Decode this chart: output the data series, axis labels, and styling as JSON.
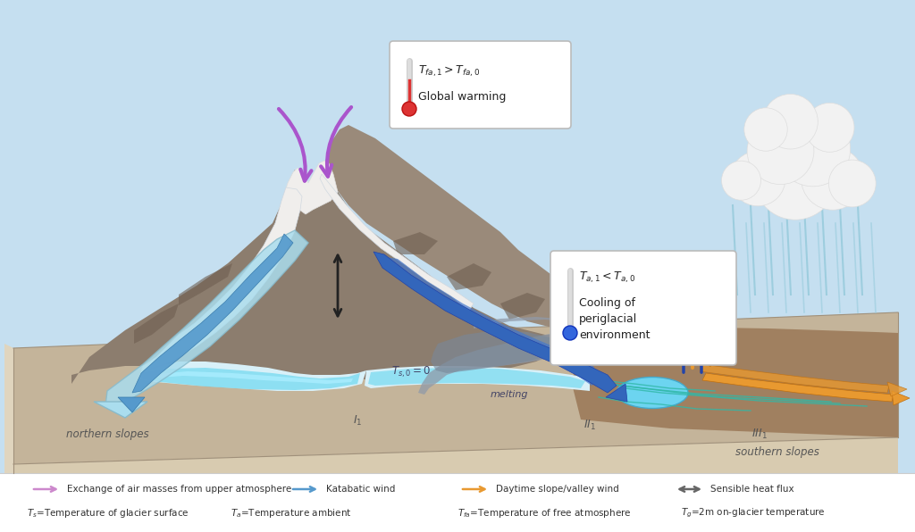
{
  "bg_color": "#b8d4e8",
  "sky_color": "#c5dff0",
  "ground_top_color": "#c4b49a",
  "ground_front_color": "#d8cbb0",
  "ground_side_color": "#e0d5be",
  "mountain_color": "#8c7d6e",
  "mountain_dark": "#6e5e50",
  "snow_color": "#f0eeec",
  "glacier_light": "#d8f0f8",
  "glacier_cyan": "#6dd8f0",
  "glacier_blue": "#a8d8f0",
  "arrow_blue_dark": "#2255aa",
  "arrow_blue_light": "#88bbdd",
  "arrow_purple": "#aa55cc",
  "arrow_orange": "#e89930",
  "moraines_color": "#909aa8",
  "water_color": "#6cd4f0",
  "box_bg": "#ffffff",
  "box_border": "#cccccc",
  "legend_items": [
    {
      "color": "#cc88cc",
      "arrow": "->",
      "label": "Exchange of air masses from upper atmosphere"
    },
    {
      "color": "#5599cc",
      "arrow": "->",
      "label": "Katabatic wind"
    },
    {
      "color": "#e89930",
      "arrow": "->",
      "label": "Daytime slope/valley wind"
    },
    {
      "color": "#666666",
      "arrow": "<->",
      "label": "Sensible heat flux"
    }
  ],
  "temp_labels": [
    {
      "sub": "s",
      "text": "=Temperature of glacier surface"
    },
    {
      "sub": "a",
      "text": "=Temperature ambient"
    },
    {
      "sub": "fa",
      "text": "=Temperature of free atmosphere"
    },
    {
      "sub": "g",
      "text": "=2m on-glacier temperature"
    }
  ]
}
